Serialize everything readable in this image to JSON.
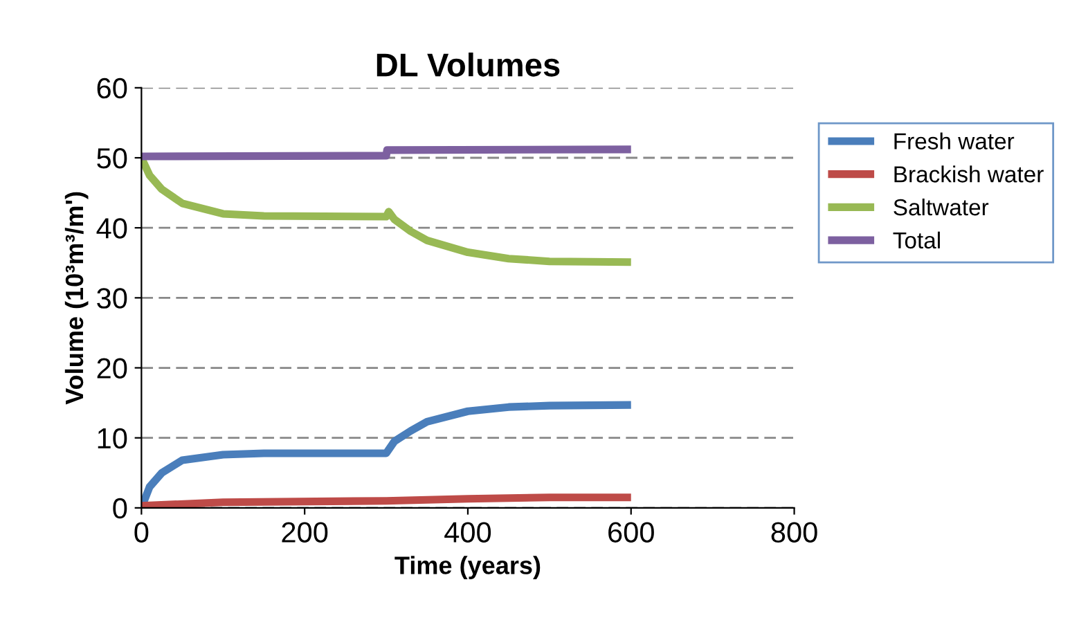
{
  "chart_data": {
    "type": "line",
    "title": "DL Volumes",
    "xlabel": "Time (years)",
    "ylabel": "Volume (10³m³/m')",
    "xlim": [
      0,
      800
    ],
    "xticks": [
      0,
      200,
      400,
      600,
      800
    ],
    "ylim": [
      0,
      60
    ],
    "yticks": [
      0,
      10,
      20,
      30,
      40,
      50,
      60
    ],
    "grid": "y",
    "legend": "right",
    "line_style": "solid",
    "marker": "none",
    "series": [
      {
        "name": "Fresh water",
        "color": "#4a7ebb",
        "x": [
          0,
          10,
          25,
          50,
          100,
          150,
          300,
          310,
          330,
          350,
          400,
          450,
          500,
          600
        ],
        "values": [
          0,
          3,
          5,
          6.8,
          7.6,
          7.8,
          7.8,
          9.5,
          11,
          12.3,
          13.8,
          14.4,
          14.6,
          14.7
        ]
      },
      {
        "name": "Brackish water",
        "color": "#be4b48",
        "x": [
          0,
          100,
          300,
          400,
          500,
          600
        ],
        "values": [
          0.3,
          0.8,
          1.0,
          1.3,
          1.5,
          1.5
        ]
      },
      {
        "name": "Saltwater",
        "color": "#98b954",
        "x": [
          0,
          10,
          25,
          50,
          100,
          150,
          300,
          303,
          310,
          330,
          350,
          400,
          450,
          500,
          600
        ],
        "values": [
          50,
          47.5,
          45.5,
          43.5,
          42,
          41.7,
          41.6,
          42.3,
          41.2,
          39.5,
          38.2,
          36.5,
          35.6,
          35.2,
          35.1
        ]
      },
      {
        "name": "Total",
        "color": "#7d60a0",
        "x": [
          0,
          300,
          301,
          600
        ],
        "values": [
          50.2,
          50.3,
          51.1,
          51.2
        ]
      }
    ]
  }
}
